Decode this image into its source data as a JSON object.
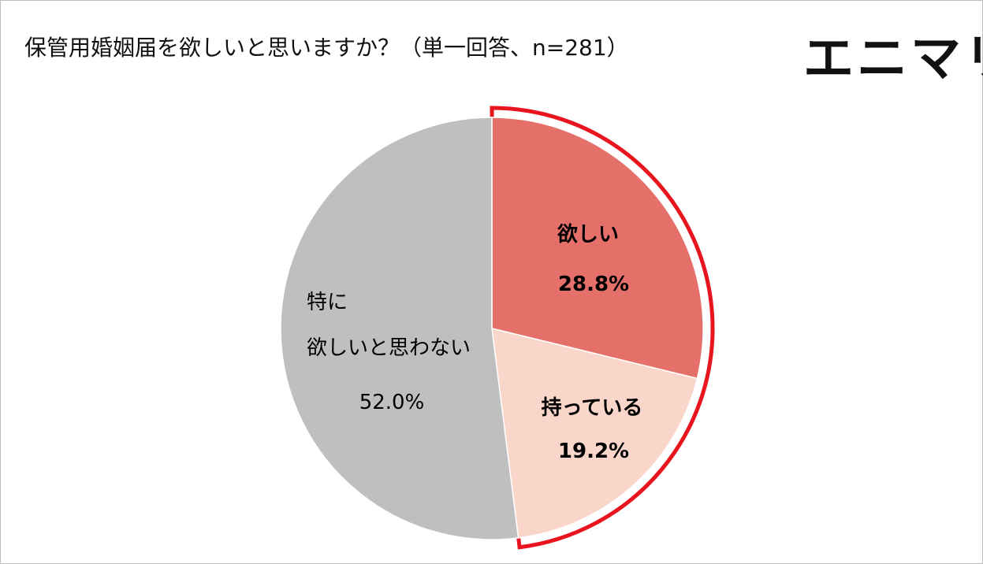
{
  "chart_data": {
    "type": "pie",
    "title": "保管用婚姻届を欲しいと思いますか？（単一回答、n=281）",
    "logo": "エニマリ",
    "categories": [
      "欲しい",
      "持っている",
      "特に\n欲しいと思わない"
    ],
    "values": [
      28.8,
      19.2,
      52.0
    ],
    "value_labels": [
      "28.8%",
      "19.2%",
      "52.0%"
    ],
    "colors": [
      "#e5706a",
      "#fad5c9",
      "#bfbfbf"
    ],
    "highlight_color": "#e8141e"
  }
}
